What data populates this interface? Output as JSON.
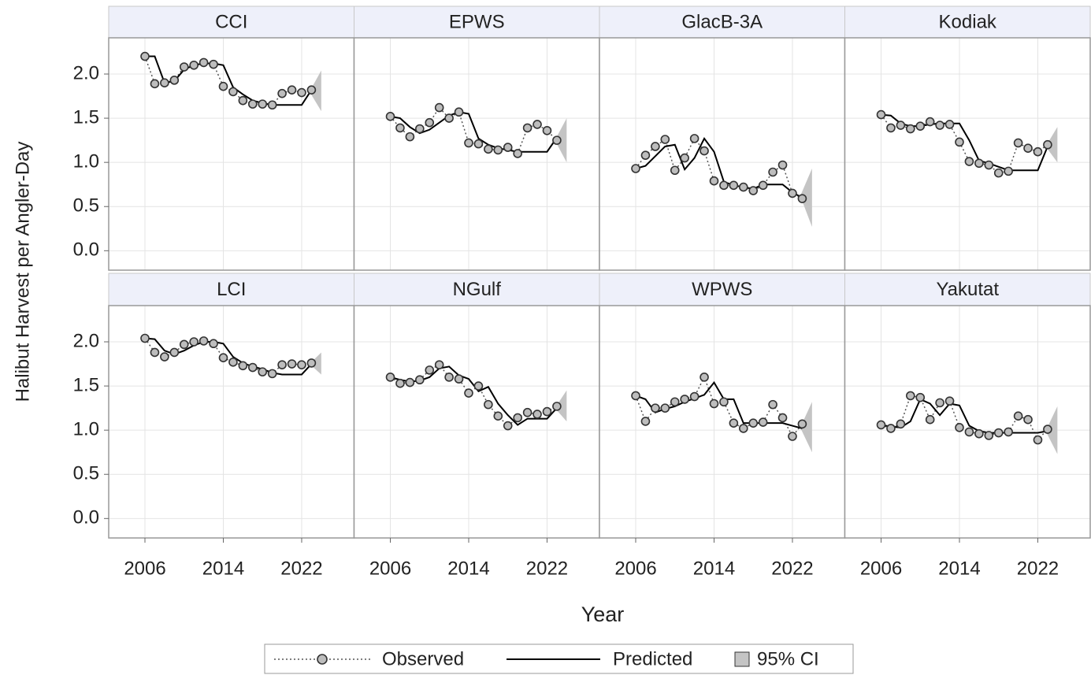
{
  "chart_data": {
    "type": "line",
    "x_label": "Year",
    "y_label": "Halibut Harvest per Angler-Day",
    "x": [
      2006,
      2007,
      2008,
      2009,
      2010,
      2011,
      2012,
      2013,
      2014,
      2015,
      2016,
      2017,
      2018,
      2019,
      2020,
      2021,
      2022,
      2023
    ],
    "xlim": [
      2002.3,
      2027.35
    ],
    "xticks": [
      2006,
      2014,
      2022
    ],
    "ylim": [
      -0.22,
      2.41
    ],
    "yticks": [
      {
        "value": 0,
        "label": "0.0"
      },
      0.5,
      {
        "value": 1,
        "label": "1.0"
      },
      1.5,
      {
        "value": 2,
        "label": "2.0"
      }
    ],
    "grid": true,
    "ci_x": [
      2022.8,
      2024
    ],
    "legend": [
      "Observed",
      "Predicted",
      "95% CI"
    ],
    "observed_color": "#bdbdbd",
    "line_color": "#000000",
    "ci_color": "#c4c4c4",
    "panels": [
      {
        "title": "CCI",
        "observed": [
          2.2,
          1.89,
          1.9,
          1.93,
          2.08,
          2.1,
          2.13,
          2.11,
          1.86,
          1.8,
          1.7,
          1.66,
          1.66,
          1.65,
          1.78,
          1.82,
          1.79,
          1.82
        ],
        "predicted": [
          2.2,
          2.2,
          1.9,
          1.92,
          2.05,
          2.1,
          2.12,
          2.12,
          2.1,
          1.85,
          1.77,
          1.7,
          1.67,
          1.65,
          1.65,
          1.65,
          1.65,
          1.82
        ],
        "ci_lower": [
          1.8,
          1.58
        ],
        "ci_upper": [
          1.8,
          2.04
        ]
      },
      {
        "title": "EPWS",
        "observed": [
          1.52,
          1.39,
          1.29,
          1.38,
          1.45,
          1.62,
          1.5,
          1.57,
          1.22,
          1.21,
          1.15,
          1.14,
          1.17,
          1.1,
          1.39,
          1.43,
          1.36,
          1.25
        ],
        "predicted": [
          1.52,
          1.5,
          1.4,
          1.33,
          1.37,
          1.45,
          1.53,
          1.57,
          1.55,
          1.27,
          1.2,
          1.16,
          1.14,
          1.12,
          1.12,
          1.12,
          1.12,
          1.28
        ],
        "ci_lower": [
          1.25,
          1.0
        ],
        "ci_upper": [
          1.25,
          1.5
        ]
      },
      {
        "title": "GlacB-3A",
        "observed": [
          0.93,
          1.08,
          1.18,
          1.26,
          0.91,
          1.05,
          1.27,
          1.13,
          0.79,
          0.74,
          0.74,
          0.72,
          0.68,
          0.74,
          0.89,
          0.97,
          0.65,
          0.59
        ],
        "predicted": [
          0.93,
          0.96,
          1.07,
          1.18,
          1.2,
          0.92,
          1.05,
          1.27,
          1.12,
          0.78,
          0.74,
          0.72,
          0.7,
          0.75,
          0.75,
          0.75,
          0.66,
          0.6
        ],
        "ci_lower": [
          0.62,
          0.27
        ],
        "ci_upper": [
          0.62,
          0.93
        ]
      },
      {
        "title": "Kodiak",
        "observed": [
          1.54,
          1.39,
          1.42,
          1.38,
          1.41,
          1.46,
          1.42,
          1.43,
          1.23,
          1.01,
          0.99,
          0.97,
          0.88,
          0.9,
          1.22,
          1.16,
          1.12,
          1.2
        ],
        "predicted": [
          1.54,
          1.53,
          1.44,
          1.41,
          1.41,
          1.43,
          1.44,
          1.44,
          1.44,
          1.25,
          1.02,
          0.99,
          0.95,
          0.91,
          0.91,
          0.91,
          0.91,
          1.18
        ],
        "ci_lower": [
          1.18,
          1.0
        ],
        "ci_upper": [
          1.18,
          1.4
        ]
      },
      {
        "title": "LCI",
        "observed": [
          2.04,
          1.88,
          1.83,
          1.88,
          1.97,
          2.0,
          2.01,
          1.98,
          1.82,
          1.77,
          1.73,
          1.71,
          1.66,
          1.64,
          1.74,
          1.75,
          1.74,
          1.76
        ],
        "predicted": [
          2.04,
          2.03,
          1.9,
          1.86,
          1.9,
          1.96,
          2.0,
          2.0,
          1.98,
          1.83,
          1.76,
          1.72,
          1.69,
          1.65,
          1.63,
          1.63,
          1.63,
          1.75
        ],
        "ci_lower": [
          1.75,
          1.63
        ],
        "ci_upper": [
          1.75,
          1.88
        ]
      },
      {
        "title": "NGulf",
        "observed": [
          1.6,
          1.53,
          1.54,
          1.57,
          1.68,
          1.74,
          1.6,
          1.58,
          1.42,
          1.5,
          1.29,
          1.16,
          1.05,
          1.14,
          1.2,
          1.18,
          1.21,
          1.27
        ],
        "predicted": [
          1.6,
          1.57,
          1.55,
          1.56,
          1.6,
          1.7,
          1.72,
          1.62,
          1.58,
          1.44,
          1.49,
          1.3,
          1.17,
          1.06,
          1.13,
          1.13,
          1.13,
          1.25
        ],
        "ci_lower": [
          1.25,
          1.1
        ],
        "ci_upper": [
          1.25,
          1.45
        ]
      },
      {
        "title": "WPWS",
        "observed": [
          1.39,
          1.1,
          1.25,
          1.25,
          1.32,
          1.35,
          1.38,
          1.6,
          1.3,
          1.32,
          1.08,
          1.02,
          1.08,
          1.09,
          1.29,
          1.14,
          0.93,
          1.07
        ],
        "predicted": [
          1.39,
          1.35,
          1.2,
          1.24,
          1.27,
          1.32,
          1.36,
          1.4,
          1.54,
          1.35,
          1.35,
          1.08,
          1.08,
          1.08,
          1.08,
          1.08,
          1.05,
          1.02
        ],
        "ci_lower": [
          1.03,
          0.75
        ],
        "ci_upper": [
          1.03,
          1.32
        ]
      },
      {
        "title": "Yakutat",
        "observed": [
          1.06,
          1.02,
          1.07,
          1.39,
          1.37,
          1.12,
          1.31,
          1.33,
          1.03,
          0.98,
          0.96,
          0.94,
          0.97,
          0.98,
          1.16,
          1.12,
          0.89,
          1.01
        ],
        "predicted": [
          1.06,
          1.04,
          1.03,
          1.1,
          1.35,
          1.3,
          1.17,
          1.3,
          1.28,
          1.05,
          0.99,
          0.97,
          0.97,
          0.97,
          0.97,
          0.97,
          0.97,
          0.99
        ],
        "ci_lower": [
          0.99,
          0.73
        ],
        "ci_upper": [
          0.99,
          1.27
        ]
      }
    ]
  }
}
